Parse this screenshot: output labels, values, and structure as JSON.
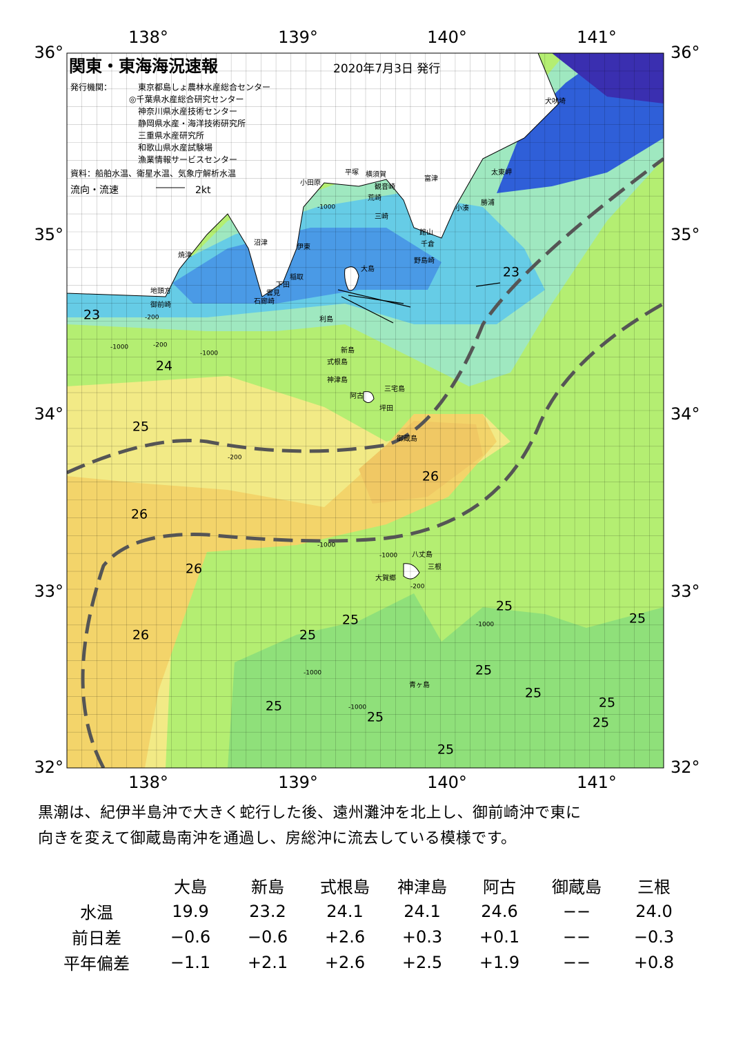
{
  "header": {
    "title": "関東・東海海況速報",
    "date": "2020年7月3日 発行",
    "org_label": "発行機関：",
    "orgs": [
      "東京都島しょ農林水産総合センター",
      "◎千葉県水産総合研究センター",
      "神奈川県水産技術センター",
      "静岡県水産・海洋技術研究所",
      "三重県水産研究所",
      "和歌山県水産試験場",
      "漁業情報サービスセンター"
    ],
    "source": "資料：船舶水温、衛星水温、気象庁解析水温",
    "flow_label": "流向・流速",
    "flow_scale": "2kt"
  },
  "axes": {
    "lon_labels": [
      "138°",
      "139°",
      "140°",
      "141°"
    ],
    "lat_labels": [
      "36°",
      "35°",
      "34°",
      "33°",
      "32°"
    ]
  },
  "places": [
    "犬吠埼",
    "太東岬",
    "勝浦",
    "小湊",
    "富津",
    "横須賀",
    "観音崎",
    "平塚",
    "荒崎",
    "小田原",
    "三崎",
    "館山",
    "千倉",
    "野島崎",
    "沼津",
    "伊東",
    "焼津",
    "大島",
    "稲取",
    "下田",
    "雲見",
    "石廊崎",
    "地頭方",
    "御前崎",
    "利島",
    "新島",
    "式根島",
    "神津島",
    "三宅島",
    "阿古",
    "坪田",
    "御蔵島",
    "八丈島",
    "三根",
    "大賀郷",
    "青ヶ島"
  ],
  "isotherm_labels": [
    "23",
    "23",
    "24",
    "25",
    "26",
    "26",
    "26",
    "26",
    "25",
    "25",
    "25",
    "25",
    "25",
    "25",
    "25",
    "25",
    "25",
    "25",
    "25"
  ],
  "depth_labels": [
    "-1000",
    "-200",
    "-1000",
    "-200",
    "-1000",
    "-1000",
    "-1000",
    "-200",
    "-1000",
    "-1000",
    "-1000",
    "-200"
  ],
  "summary": [
    "黒潮は、紀伊半島沖で大きく蛇行した後、遠州灘沖を北上し、御前崎沖で東に",
    "向きを変えて御蔵島南沖を通過し、房総沖に流去している模様です。"
  ],
  "table": {
    "columns": [
      "大島",
      "新島",
      "式根島",
      "神津島",
      "阿古",
      "御蔵島",
      "三根"
    ],
    "rows": [
      {
        "label": "水温",
        "cells": [
          "19.9",
          "23.2",
          "24.1",
          "24.1",
          "24.6",
          "−−",
          "24.0"
        ]
      },
      {
        "label": "前日差",
        "cells": [
          "−0.6",
          "−0.6",
          "+2.6",
          "+0.3",
          "+0.1",
          "−−",
          "−0.3"
        ]
      },
      {
        "label": "平年偏差",
        "cells": [
          "−1.1",
          "+2.1",
          "+2.6",
          "+2.5",
          "+1.9",
          "−−",
          "+0.8"
        ]
      }
    ]
  }
}
